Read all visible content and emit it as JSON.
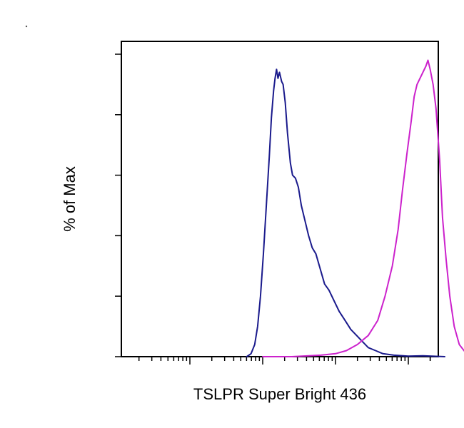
{
  "chart_data": {
    "type": "line",
    "title": "",
    "xlabel": "TSLPR Super Bright 436",
    "ylabel": "% of Max",
    "x_scale": "log",
    "xlim": [
      -0.3,
      5
    ],
    "ylim": [
      0,
      100
    ],
    "grid": false,
    "legend": "none",
    "series": [
      {
        "color": "#1a1a8c",
        "points": [
          [
            0.78,
            0
          ],
          [
            0.84,
            1
          ],
          [
            0.89,
            4
          ],
          [
            0.93,
            10
          ],
          [
            0.97,
            20
          ],
          [
            1.01,
            34
          ],
          [
            1.05,
            50
          ],
          [
            1.09,
            66
          ],
          [
            1.12,
            79
          ],
          [
            1.15,
            88
          ],
          [
            1.17,
            92
          ],
          [
            1.19,
            95
          ],
          [
            1.21,
            92
          ],
          [
            1.23,
            94
          ],
          [
            1.26,
            91
          ],
          [
            1.28,
            90
          ],
          [
            1.31,
            84
          ],
          [
            1.34,
            74
          ],
          [
            1.38,
            64
          ],
          [
            1.41,
            60
          ],
          [
            1.45,
            59
          ],
          [
            1.49,
            56
          ],
          [
            1.53,
            50
          ],
          [
            1.58,
            45
          ],
          [
            1.63,
            40
          ],
          [
            1.68,
            36
          ],
          [
            1.73,
            34
          ],
          [
            1.79,
            29
          ],
          [
            1.85,
            24
          ],
          [
            1.91,
            22
          ],
          [
            1.97,
            19
          ],
          [
            2.05,
            15
          ],
          [
            2.13,
            12
          ],
          [
            2.21,
            9
          ],
          [
            2.29,
            7
          ],
          [
            2.37,
            5
          ],
          [
            2.45,
            3
          ],
          [
            2.55,
            2
          ],
          [
            2.65,
            1
          ],
          [
            2.8,
            0.5
          ],
          [
            3.0,
            0.2
          ],
          [
            3.2,
            0.3
          ],
          [
            3.5,
            0
          ]
        ]
      },
      {
        "color": "#cc22cc",
        "points": [
          [
            1.0,
            0
          ],
          [
            1.4,
            0
          ],
          [
            1.8,
            0.5
          ],
          [
            2.0,
            1
          ],
          [
            2.15,
            2
          ],
          [
            2.3,
            4
          ],
          [
            2.45,
            7
          ],
          [
            2.58,
            12
          ],
          [
            2.68,
            20
          ],
          [
            2.78,
            30
          ],
          [
            2.86,
            42
          ],
          [
            2.92,
            55
          ],
          [
            2.98,
            67
          ],
          [
            3.04,
            78
          ],
          [
            3.08,
            86
          ],
          [
            3.12,
            90
          ],
          [
            3.16,
            92
          ],
          [
            3.2,
            94
          ],
          [
            3.24,
            96
          ],
          [
            3.27,
            98
          ],
          [
            3.3,
            95
          ],
          [
            3.34,
            90
          ],
          [
            3.38,
            82
          ],
          [
            3.43,
            65
          ],
          [
            3.47,
            46
          ],
          [
            3.52,
            32
          ],
          [
            3.57,
            20
          ],
          [
            3.63,
            10
          ],
          [
            3.7,
            4
          ],
          [
            3.78,
            1.5
          ],
          [
            3.9,
            0.5
          ],
          [
            4.1,
            0
          ]
        ]
      }
    ]
  }
}
